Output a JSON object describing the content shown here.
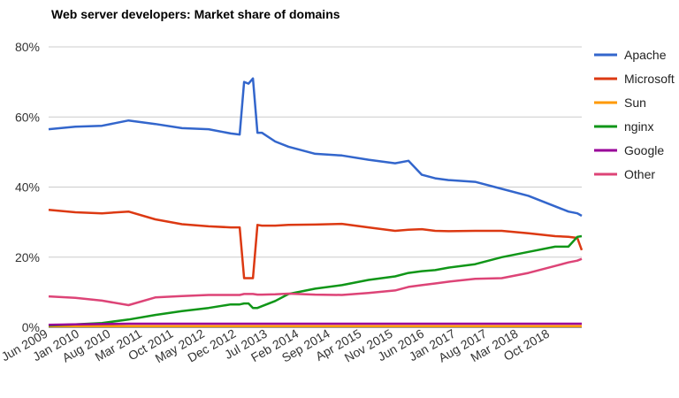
{
  "chart_data": {
    "type": "line",
    "title": "Web server developers: Market share of domains",
    "xlabel": "",
    "ylabel": "",
    "ylim": [
      0,
      80
    ],
    "y_ticks": [
      "0%",
      "20%",
      "40%",
      "60%",
      "80%"
    ],
    "y_tick_values": [
      0,
      20,
      40,
      60,
      80
    ],
    "x_tick_labels": [
      "Jun 2009",
      "Jan 2010",
      "Aug 2010",
      "Mar 2011",
      "Oct 2011",
      "May 2012",
      "Dec 2012",
      "Jul 2013",
      "Feb 2014",
      "Sep 2014",
      "Apr 2015",
      "Nov 2015",
      "Jun 2016",
      "Jan 2017",
      "Aug 2017",
      "Mar 2018",
      "Oct 2018"
    ],
    "grid": true,
    "legend_position": "right",
    "x": [
      "2009-06",
      "2009-12",
      "2010-06",
      "2010-12",
      "2011-06",
      "2011-12",
      "2012-06",
      "2012-11",
      "2013-01",
      "2013-02",
      "2013-03",
      "2013-04",
      "2013-05",
      "2013-06",
      "2013-09",
      "2013-12",
      "2014-06",
      "2014-12",
      "2015-06",
      "2015-12",
      "2016-03",
      "2016-06",
      "2016-09",
      "2016-12",
      "2017-06",
      "2017-12",
      "2018-06",
      "2018-12",
      "2019-03",
      "2019-05",
      "2019-06"
    ],
    "series": [
      {
        "name": "Apache",
        "color": "#3366cc",
        "values": [
          56.5,
          57.2,
          57.5,
          59,
          58,
          56.8,
          56.5,
          55.3,
          55,
          70,
          69.5,
          71,
          55.5,
          55.5,
          53,
          51.5,
          49.5,
          49,
          47.8,
          46.8,
          47.5,
          43.5,
          42.5,
          42,
          41.5,
          39.5,
          37.5,
          34.5,
          33,
          32.5,
          31.8
        ]
      },
      {
        "name": "Microsoft",
        "color": "#dc3912",
        "values": [
          33.5,
          32.8,
          32.5,
          33,
          30.8,
          29.4,
          28.8,
          28.5,
          28.5,
          14,
          14,
          14,
          29.2,
          29,
          29,
          29.2,
          29.3,
          29.5,
          28.5,
          27.5,
          27.8,
          28,
          27.5,
          27.4,
          27.5,
          27.5,
          26.8,
          26,
          25.8,
          25.5,
          22
        ]
      },
      {
        "name": "Sun",
        "color": "#ff9900",
        "values": [
          0.3,
          0.3,
          0.3,
          0.3,
          0.3,
          0.3,
          0.3,
          0.3,
          0.3,
          0.3,
          0.3,
          0.3,
          0.3,
          0.3,
          0.3,
          0.3,
          0.3,
          0.3,
          0.3,
          0.3,
          0.3,
          0.3,
          0.3,
          0.3,
          0.3,
          0.3,
          0.3,
          0.3,
          0.3,
          0.3,
          0.3
        ]
      },
      {
        "name": "nginx",
        "color": "#109618",
        "values": [
          0.5,
          0.8,
          1.2,
          2.2,
          3.5,
          4.6,
          5.5,
          6.5,
          6.5,
          6.8,
          6.8,
          5.5,
          5.5,
          6,
          7.5,
          9.5,
          11,
          12,
          13.5,
          14.5,
          15.5,
          16,
          16.3,
          17,
          18,
          20,
          21.5,
          23,
          23,
          25.8,
          26
        ]
      },
      {
        "name": "Google",
        "color": "#990099",
        "values": [
          0.7,
          0.8,
          0.9,
          1,
          1,
          1,
          1,
          1,
          1,
          1,
          1,
          1,
          1,
          1,
          1,
          1,
          1,
          1,
          1,
          1,
          1,
          1,
          1,
          1,
          1,
          1,
          1,
          1,
          1,
          1,
          1
        ]
      },
      {
        "name": "Other",
        "color": "#dd4477",
        "values": [
          8.8,
          8.4,
          7.6,
          6.3,
          8.5,
          8.9,
          9.2,
          9.2,
          9.2,
          9.5,
          9.5,
          9.5,
          9.3,
          9.3,
          9.4,
          9.6,
          9.3,
          9.2,
          9.8,
          10.5,
          11.5,
          12,
          12.5,
          13,
          13.8,
          14,
          15.5,
          17.5,
          18.5,
          19,
          19.5
        ]
      }
    ]
  }
}
